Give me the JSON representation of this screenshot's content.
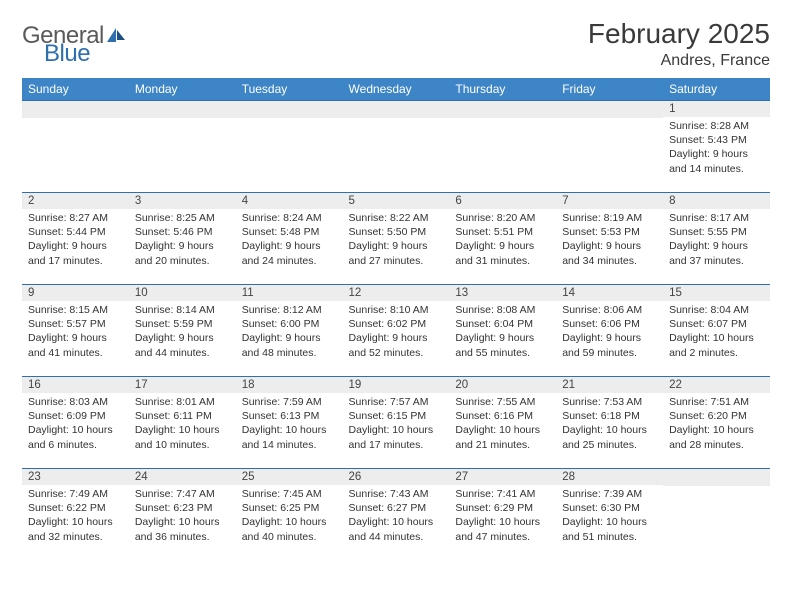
{
  "branding": {
    "logo_text_1": "General",
    "logo_text_2": "Blue"
  },
  "header": {
    "month_title": "February 2025",
    "location": "Andres, France"
  },
  "styling": {
    "header_bg": "#3d85c6",
    "header_text": "#ffffff",
    "row_border": "#2f6fae",
    "daynum_bg": "#ededed",
    "font_family": "Arial, Helvetica, sans-serif",
    "month_title_fontsize_pt": 21,
    "location_fontsize_pt": 12,
    "weekday_fontsize_pt": 9,
    "body_fontsize_pt": 8
  },
  "weekdays": [
    "Sunday",
    "Monday",
    "Tuesday",
    "Wednesday",
    "Thursday",
    "Friday",
    "Saturday"
  ],
  "weeks": [
    [
      null,
      null,
      null,
      null,
      null,
      null,
      {
        "d": "1",
        "sunrise": "Sunrise: 8:28 AM",
        "sunset": "Sunset: 5:43 PM",
        "daylight": "Daylight: 9 hours and 14 minutes."
      }
    ],
    [
      {
        "d": "2",
        "sunrise": "Sunrise: 8:27 AM",
        "sunset": "Sunset: 5:44 PM",
        "daylight": "Daylight: 9 hours and 17 minutes."
      },
      {
        "d": "3",
        "sunrise": "Sunrise: 8:25 AM",
        "sunset": "Sunset: 5:46 PM",
        "daylight": "Daylight: 9 hours and 20 minutes."
      },
      {
        "d": "4",
        "sunrise": "Sunrise: 8:24 AM",
        "sunset": "Sunset: 5:48 PM",
        "daylight": "Daylight: 9 hours and 24 minutes."
      },
      {
        "d": "5",
        "sunrise": "Sunrise: 8:22 AM",
        "sunset": "Sunset: 5:50 PM",
        "daylight": "Daylight: 9 hours and 27 minutes."
      },
      {
        "d": "6",
        "sunrise": "Sunrise: 8:20 AM",
        "sunset": "Sunset: 5:51 PM",
        "daylight": "Daylight: 9 hours and 31 minutes."
      },
      {
        "d": "7",
        "sunrise": "Sunrise: 8:19 AM",
        "sunset": "Sunset: 5:53 PM",
        "daylight": "Daylight: 9 hours and 34 minutes."
      },
      {
        "d": "8",
        "sunrise": "Sunrise: 8:17 AM",
        "sunset": "Sunset: 5:55 PM",
        "daylight": "Daylight: 9 hours and 37 minutes."
      }
    ],
    [
      {
        "d": "9",
        "sunrise": "Sunrise: 8:15 AM",
        "sunset": "Sunset: 5:57 PM",
        "daylight": "Daylight: 9 hours and 41 minutes."
      },
      {
        "d": "10",
        "sunrise": "Sunrise: 8:14 AM",
        "sunset": "Sunset: 5:59 PM",
        "daylight": "Daylight: 9 hours and 44 minutes."
      },
      {
        "d": "11",
        "sunrise": "Sunrise: 8:12 AM",
        "sunset": "Sunset: 6:00 PM",
        "daylight": "Daylight: 9 hours and 48 minutes."
      },
      {
        "d": "12",
        "sunrise": "Sunrise: 8:10 AM",
        "sunset": "Sunset: 6:02 PM",
        "daylight": "Daylight: 9 hours and 52 minutes."
      },
      {
        "d": "13",
        "sunrise": "Sunrise: 8:08 AM",
        "sunset": "Sunset: 6:04 PM",
        "daylight": "Daylight: 9 hours and 55 minutes."
      },
      {
        "d": "14",
        "sunrise": "Sunrise: 8:06 AM",
        "sunset": "Sunset: 6:06 PM",
        "daylight": "Daylight: 9 hours and 59 minutes."
      },
      {
        "d": "15",
        "sunrise": "Sunrise: 8:04 AM",
        "sunset": "Sunset: 6:07 PM",
        "daylight": "Daylight: 10 hours and 2 minutes."
      }
    ],
    [
      {
        "d": "16",
        "sunrise": "Sunrise: 8:03 AM",
        "sunset": "Sunset: 6:09 PM",
        "daylight": "Daylight: 10 hours and 6 minutes."
      },
      {
        "d": "17",
        "sunrise": "Sunrise: 8:01 AM",
        "sunset": "Sunset: 6:11 PM",
        "daylight": "Daylight: 10 hours and 10 minutes."
      },
      {
        "d": "18",
        "sunrise": "Sunrise: 7:59 AM",
        "sunset": "Sunset: 6:13 PM",
        "daylight": "Daylight: 10 hours and 14 minutes."
      },
      {
        "d": "19",
        "sunrise": "Sunrise: 7:57 AM",
        "sunset": "Sunset: 6:15 PM",
        "daylight": "Daylight: 10 hours and 17 minutes."
      },
      {
        "d": "20",
        "sunrise": "Sunrise: 7:55 AM",
        "sunset": "Sunset: 6:16 PM",
        "daylight": "Daylight: 10 hours and 21 minutes."
      },
      {
        "d": "21",
        "sunrise": "Sunrise: 7:53 AM",
        "sunset": "Sunset: 6:18 PM",
        "daylight": "Daylight: 10 hours and 25 minutes."
      },
      {
        "d": "22",
        "sunrise": "Sunrise: 7:51 AM",
        "sunset": "Sunset: 6:20 PM",
        "daylight": "Daylight: 10 hours and 28 minutes."
      }
    ],
    [
      {
        "d": "23",
        "sunrise": "Sunrise: 7:49 AM",
        "sunset": "Sunset: 6:22 PM",
        "daylight": "Daylight: 10 hours and 32 minutes."
      },
      {
        "d": "24",
        "sunrise": "Sunrise: 7:47 AM",
        "sunset": "Sunset: 6:23 PM",
        "daylight": "Daylight: 10 hours and 36 minutes."
      },
      {
        "d": "25",
        "sunrise": "Sunrise: 7:45 AM",
        "sunset": "Sunset: 6:25 PM",
        "daylight": "Daylight: 10 hours and 40 minutes."
      },
      {
        "d": "26",
        "sunrise": "Sunrise: 7:43 AM",
        "sunset": "Sunset: 6:27 PM",
        "daylight": "Daylight: 10 hours and 44 minutes."
      },
      {
        "d": "27",
        "sunrise": "Sunrise: 7:41 AM",
        "sunset": "Sunset: 6:29 PM",
        "daylight": "Daylight: 10 hours and 47 minutes."
      },
      {
        "d": "28",
        "sunrise": "Sunrise: 7:39 AM",
        "sunset": "Sunset: 6:30 PM",
        "daylight": "Daylight: 10 hours and 51 minutes."
      },
      null
    ]
  ]
}
